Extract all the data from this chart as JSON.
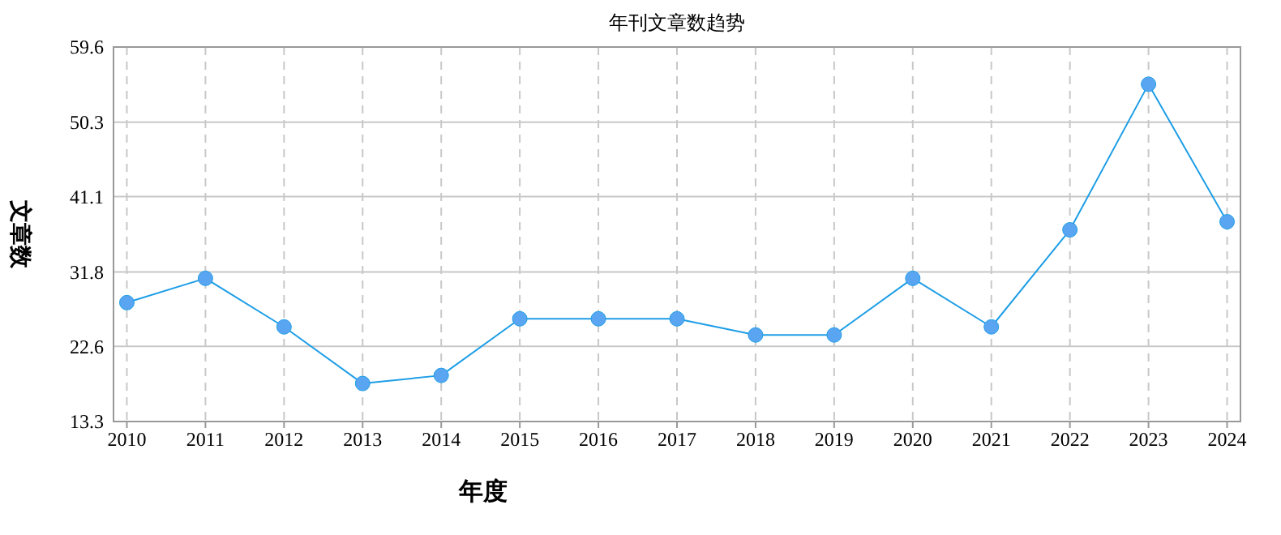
{
  "chart_data": {
    "type": "line",
    "title": "年刊文章数趋势",
    "xlabel": "年度",
    "ylabel": "文章数",
    "categories": [
      "2010",
      "2011",
      "2012",
      "2013",
      "2014",
      "2015",
      "2016",
      "2017",
      "2018",
      "2019",
      "2020",
      "2021",
      "2022",
      "2023",
      "2024"
    ],
    "series": [
      {
        "color": "#1e9ee6",
        "values": [
          28,
          31,
          25,
          18,
          19,
          26,
          26,
          26,
          24,
          24,
          31,
          25,
          37,
          55,
          38
        ]
      }
    ],
    "ylim": [
      13.3,
      59.6
    ],
    "yticks": [
      13.3,
      22.6,
      31.8,
      41.1,
      50.3,
      59.6
    ],
    "grid": true,
    "marker": "circle"
  }
}
